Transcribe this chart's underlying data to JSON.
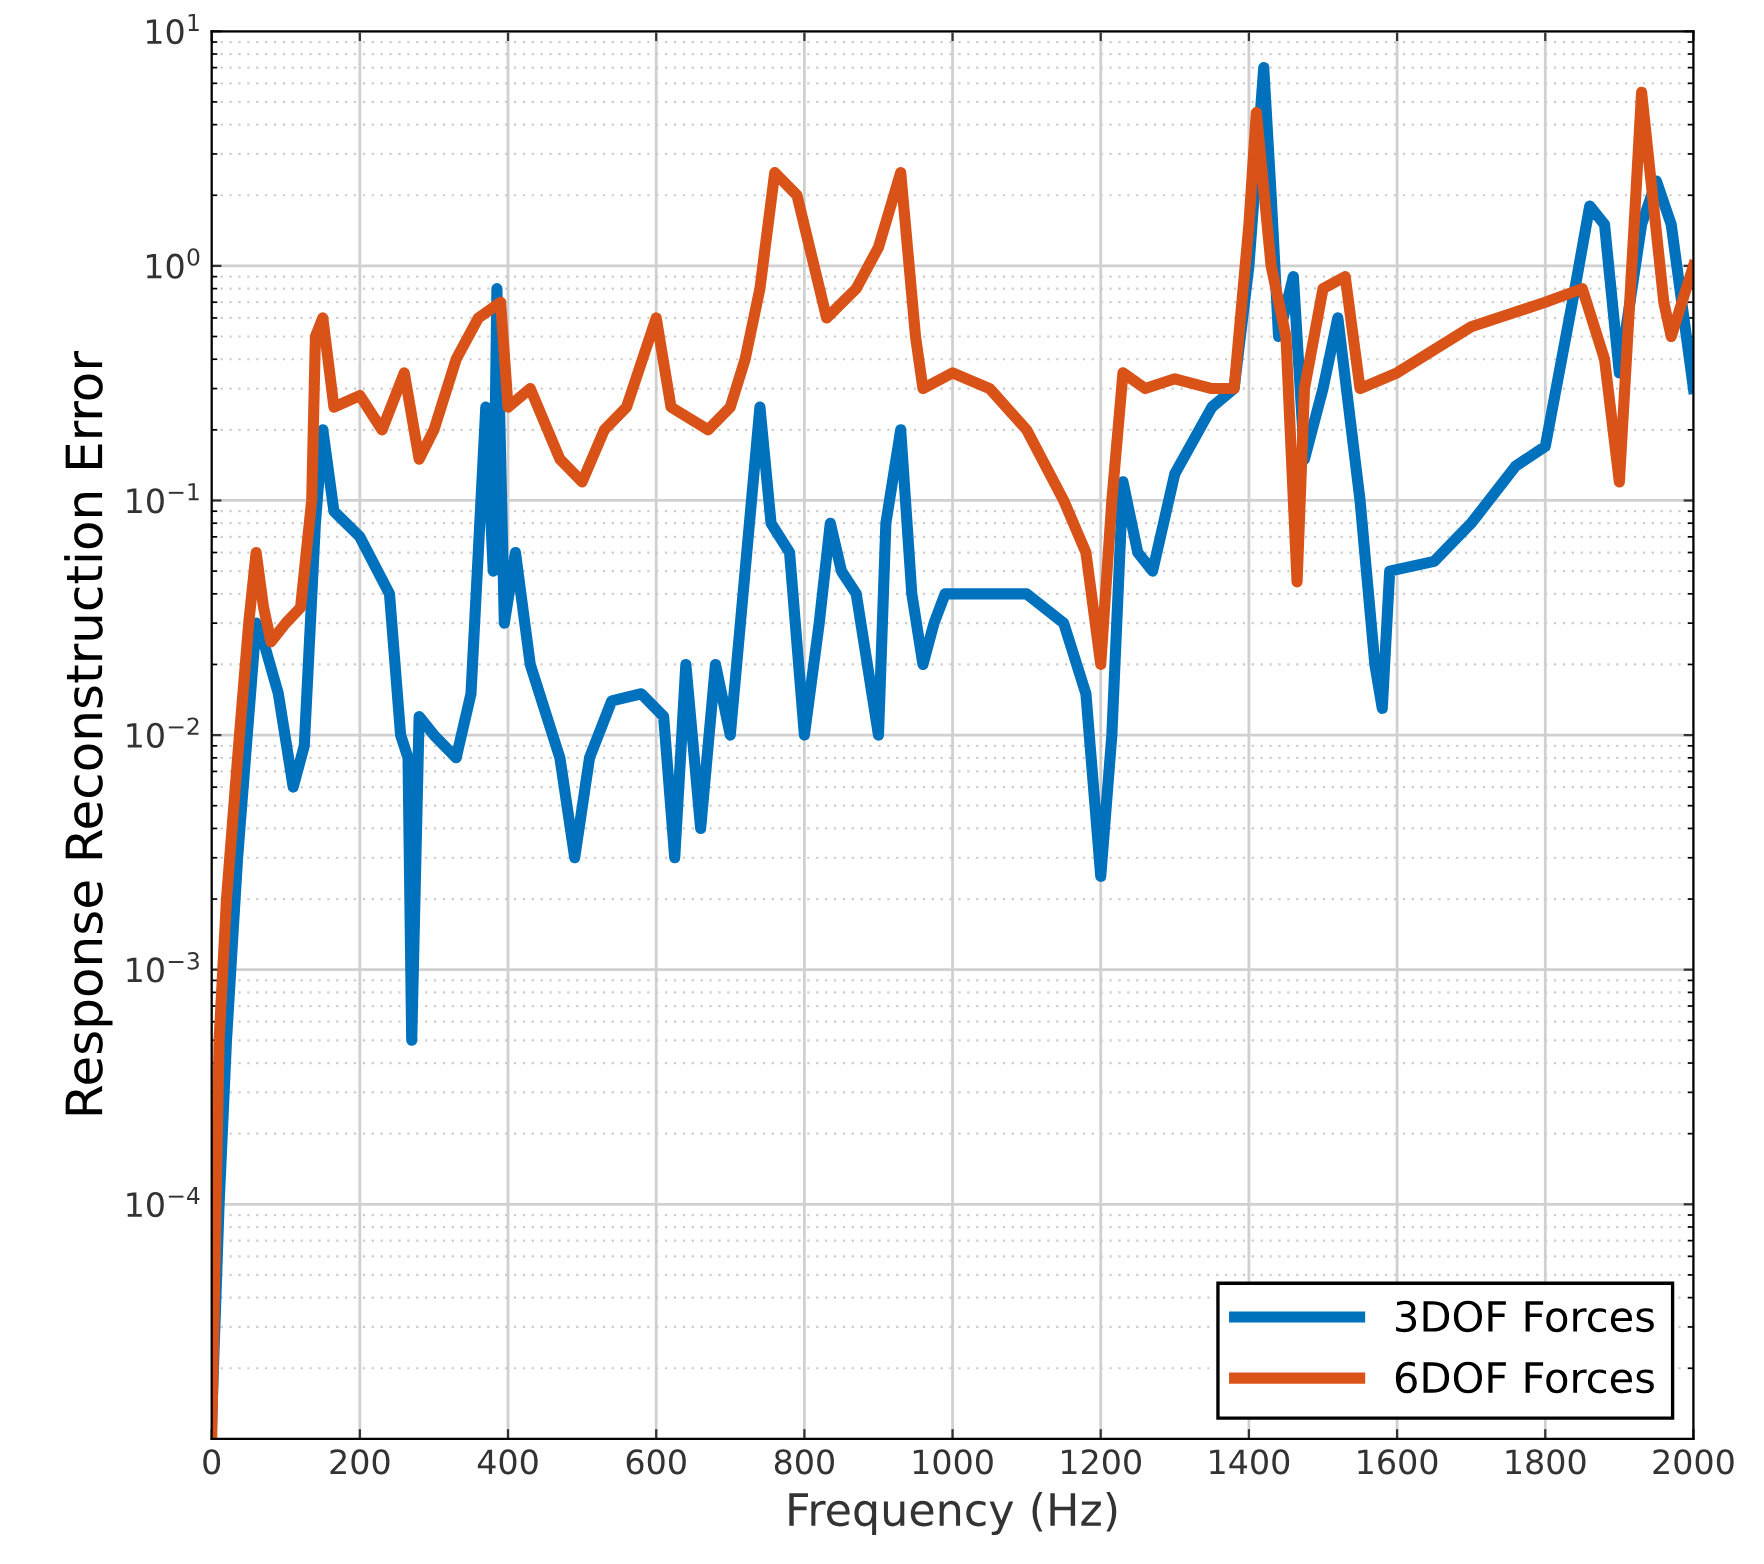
{
  "chart_data": {
    "type": "line",
    "xlabel": "Frequency (Hz)",
    "ylabel": "Response Reconstruction Error",
    "log": "y",
    "grid": true,
    "legend": "bottom right",
    "line_style": "solid",
    "marker": "none",
    "xlim": [
      0,
      2000
    ],
    "xticks": [
      0,
      200,
      400,
      600,
      800,
      1000,
      1200,
      1400,
      1600,
      1800,
      2000
    ],
    "ylim": [
      1e-05,
      10
    ],
    "yticks": [
      {
        "value": 0.0001,
        "label": "10$^{−4}$"
      },
      {
        "value": 0.001,
        "label": "10$^{−3}$"
      },
      {
        "value": 0.01,
        "label": "10$^{−2}$"
      },
      {
        "value": 0.1,
        "label": "10$^{−1}$"
      },
      {
        "value": 1,
        "label": "10$^{0}$"
      },
      {
        "value": 10,
        "label": "10$^{1}$"
      }
    ],
    "series": [
      {
        "name": "3DOF Forces",
        "color": "#0072bd",
        "x": [
          0,
          10,
          20,
          35,
          50,
          60,
          70,
          90,
          110,
          125,
          140,
          150,
          165,
          200,
          240,
          255,
          265,
          270,
          280,
          300,
          330,
          350,
          370,
          380,
          385,
          395,
          410,
          430,
          470,
          490,
          510,
          540,
          580,
          610,
          625,
          640,
          660,
          680,
          700,
          720,
          740,
          755,
          780,
          800,
          820,
          835,
          850,
          870,
          900,
          910,
          930,
          945,
          960,
          975,
          990,
          1050,
          1100,
          1150,
          1180,
          1200,
          1215,
          1230,
          1250,
          1270,
          1300,
          1350,
          1380,
          1400,
          1420,
          1430,
          1440,
          1460,
          1475,
          1500,
          1520,
          1550,
          1570,
          1580,
          1590,
          1650,
          1700,
          1760,
          1800,
          1840,
          1860,
          1880,
          1900,
          1930,
          1950,
          1970,
          2000
        ],
        "values": [
          1.2e-05,
          0.0001,
          0.0005,
          0.003,
          0.012,
          0.03,
          0.025,
          0.015,
          0.006,
          0.009,
          0.08,
          0.2,
          0.09,
          0.07,
          0.04,
          0.01,
          0.008,
          0.0005,
          0.012,
          0.01,
          0.008,
          0.015,
          0.25,
          0.05,
          0.8,
          0.03,
          0.06,
          0.02,
          0.008,
          0.003,
          0.008,
          0.014,
          0.015,
          0.012,
          0.003,
          0.02,
          0.004,
          0.02,
          0.01,
          0.05,
          0.25,
          0.08,
          0.06,
          0.01,
          0.03,
          0.08,
          0.05,
          0.04,
          0.01,
          0.08,
          0.2,
          0.04,
          0.02,
          0.03,
          0.04,
          0.04,
          0.04,
          0.03,
          0.015,
          0.0025,
          0.01,
          0.12,
          0.06,
          0.05,
          0.13,
          0.25,
          0.3,
          1.0,
          7,
          2,
          0.5,
          0.9,
          0.15,
          0.3,
          0.6,
          0.1,
          0.02,
          0.013,
          0.05,
          0.055,
          0.08,
          0.14,
          0.17,
          0.8,
          1.8,
          1.5,
          0.35,
          1.5,
          2.3,
          1.5,
          0.3
        ]
      },
      {
        "name": "6DOF Forces",
        "color": "#d95319",
        "x": [
          0,
          10,
          20,
          35,
          50,
          60,
          70,
          80,
          100,
          120,
          135,
          140,
          150,
          165,
          200,
          230,
          260,
          280,
          300,
          330,
          360,
          390,
          400,
          430,
          470,
          500,
          530,
          560,
          600,
          620,
          670,
          700,
          720,
          740,
          760,
          790,
          830,
          870,
          900,
          930,
          950,
          960,
          1000,
          1050,
          1100,
          1150,
          1180,
          1200,
          1215,
          1230,
          1260,
          1300,
          1350,
          1380,
          1400,
          1410,
          1430,
          1450,
          1465,
          1475,
          1500,
          1530,
          1550,
          1600,
          1700,
          1800,
          1850,
          1880,
          1900,
          1920,
          1930,
          1960,
          1970,
          2000
        ],
        "values": [
          1e-05,
          0.0005,
          0.002,
          0.008,
          0.03,
          0.06,
          0.035,
          0.025,
          0.03,
          0.035,
          0.1,
          0.5,
          0.6,
          0.25,
          0.28,
          0.2,
          0.35,
          0.15,
          0.2,
          0.4,
          0.6,
          0.7,
          0.25,
          0.3,
          0.15,
          0.12,
          0.2,
          0.25,
          0.6,
          0.25,
          0.2,
          0.25,
          0.4,
          0.8,
          2.5,
          2.0,
          0.6,
          0.8,
          1.2,
          2.5,
          0.5,
          0.3,
          0.35,
          0.3,
          0.2,
          0.1,
          0.06,
          0.02,
          0.1,
          0.35,
          0.3,
          0.33,
          0.3,
          0.3,
          1.5,
          4.5,
          1.0,
          0.5,
          0.045,
          0.3,
          0.8,
          0.9,
          0.3,
          0.35,
          0.55,
          0.7,
          0.8,
          0.4,
          0.12,
          1.5,
          5.5,
          0.7,
          0.5,
          1.0
        ]
      }
    ]
  }
}
